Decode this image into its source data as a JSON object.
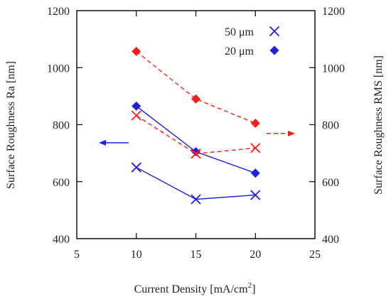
{
  "chart_data": {
    "type": "line",
    "xlabel": "Current Density [mA/cm",
    "xlabel_sup": "2",
    "xlabel_tail": "]",
    "ylabel_left": "Surface Roughness Ra [nm]",
    "ylabel_right": "Surface Roughness RMS [nm]",
    "xlim": [
      5,
      25
    ],
    "ylim": [
      400,
      1200
    ],
    "x_ticks": [
      "5",
      "10",
      "15",
      "20",
      "25"
    ],
    "y_ticks": [
      "400",
      "600",
      "800",
      "1000",
      "1200"
    ],
    "grid": false,
    "legend_position": "top-right",
    "legend": [
      {
        "label": "50 μm",
        "marker": "x"
      },
      {
        "label": "20 μm",
        "marker": "diamond"
      }
    ],
    "series": [
      {
        "name": "50 μm",
        "axis": "left",
        "color": "#1f1fe0",
        "marker": "x",
        "line": "solid",
        "x": [
          10,
          15,
          20
        ],
        "values": [
          650,
          538,
          553
        ]
      },
      {
        "name": "20 μm",
        "axis": "left",
        "color": "#1f1fe0",
        "marker": "diamond",
        "line": "solid",
        "x": [
          10,
          15,
          20
        ],
        "values": [
          865,
          705,
          630
        ]
      },
      {
        "name": "50 μm",
        "axis": "right",
        "color": "#ff1a1a",
        "marker": "x",
        "line": "dashed",
        "x": [
          10,
          15,
          20
        ],
        "values": [
          832,
          698,
          718
        ]
      },
      {
        "name": "20 μm",
        "axis": "right",
        "color": "#ff1a1a",
        "marker": "diamond",
        "line": "dashed",
        "x": [
          10,
          15,
          20
        ],
        "values": [
          1057,
          890,
          805
        ]
      }
    ],
    "annotations": [
      {
        "type": "arrow",
        "direction": "left",
        "axis": "left",
        "color": "#1f1fe0",
        "line": "solid"
      },
      {
        "type": "arrow",
        "direction": "right",
        "axis": "right",
        "color": "#ff1a1a",
        "line": "dashed"
      }
    ]
  }
}
